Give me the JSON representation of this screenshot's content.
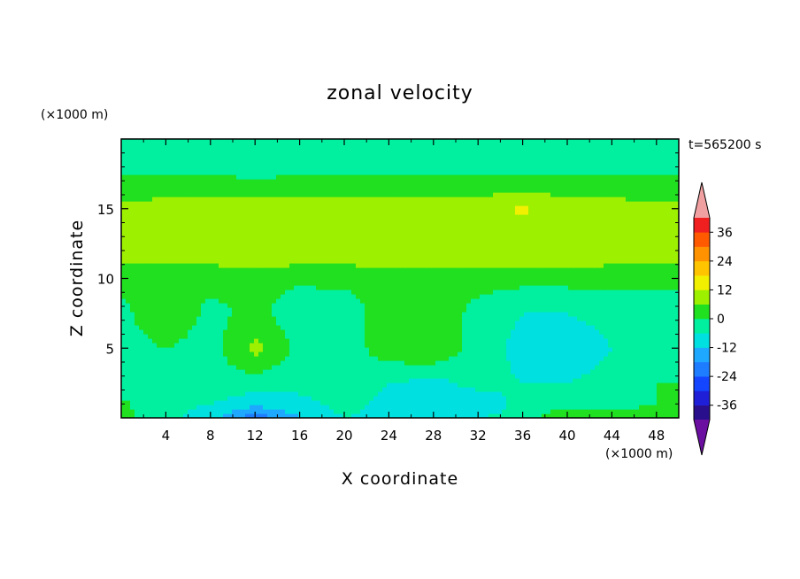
{
  "chart_data": {
    "type": "heatmap",
    "title": "zonal velocity",
    "xlabel": "X coordinate",
    "ylabel": "Z coordinate",
    "x_unit": "(×1000 m)",
    "y_unit": "(×1000 m)",
    "time_label": "t=565200 s",
    "xlim": [
      0,
      50
    ],
    "ylim": [
      0,
      20
    ],
    "x_ticks": [
      4,
      8,
      12,
      16,
      20,
      24,
      28,
      32,
      36,
      40,
      44,
      48
    ],
    "y_ticks": [
      5,
      10,
      15
    ],
    "colorbar": {
      "ticks": [
        36,
        24,
        12,
        0,
        -12,
        -24,
        -36
      ],
      "levels": [
        -42,
        -36,
        -30,
        -24,
        -18,
        -12,
        -6,
        0,
        6,
        12,
        18,
        24,
        30,
        36,
        42
      ],
      "colors": [
        "#6a0fa0",
        "#2a0f8c",
        "#1f1fd8",
        "#1446ff",
        "#1e7cff",
        "#1ea8ff",
        "#00e0e0",
        "#00f0a0",
        "#20e020",
        "#9cf000",
        "#f0f000",
        "#ffc400",
        "#ff9200",
        "#ff5a00",
        "#f02020",
        "#f0a0a0"
      ]
    },
    "field_grid": {
      "x": [
        0,
        4,
        8,
        12,
        16,
        20,
        24,
        28,
        32,
        36,
        40,
        44,
        48,
        50
      ],
      "z": [
        0,
        1,
        2.5,
        5,
        7.5,
        10,
        11,
        12.5,
        15,
        16.5,
        18,
        20
      ],
      "u": [
        [
          2,
          -4,
          -10,
          -22,
          -12,
          -6,
          -8,
          -8,
          -6,
          -4,
          6,
          4,
          2,
          2
        ],
        [
          1,
          -4,
          -6,
          -10,
          -8,
          -4,
          -8,
          -9,
          -10,
          -4,
          -2,
          -2,
          0,
          0
        ],
        [
          -2,
          -5,
          -2,
          -3,
          -4,
          -2,
          -6,
          -8,
          -4,
          -6,
          -6,
          -4,
          0,
          0
        ],
        [
          -3,
          0,
          -3,
          8,
          -2,
          -4,
          4,
          6,
          -3,
          -8,
          -10,
          -6,
          -2,
          -2
        ],
        [
          -2,
          6,
          -2,
          2,
          -4,
          -4,
          4,
          4,
          -2,
          -6,
          -6,
          -4,
          -2,
          -2
        ],
        [
          2,
          1,
          2,
          2,
          1,
          2,
          1,
          2,
          2,
          2,
          2,
          2,
          1,
          1
        ],
        [
          6,
          6,
          6,
          7,
          6,
          6,
          7,
          7,
          7,
          7,
          7,
          6,
          6,
          6
        ],
        [
          7,
          8,
          7,
          8,
          8,
          9,
          8,
          8,
          8,
          8,
          8,
          8,
          7,
          7
        ],
        [
          8,
          9,
          9,
          9,
          9,
          9,
          9,
          9,
          9,
          13,
          9,
          9,
          8,
          8
        ],
        [
          3,
          3,
          4,
          3,
          4,
          4,
          4,
          4,
          4,
          4,
          4,
          3,
          3,
          3
        ],
        [
          -2,
          -2,
          -3,
          -3,
          -3,
          -2,
          -3,
          -3,
          -3,
          -3,
          -3,
          -2,
          -2,
          -2
        ],
        [
          -1,
          -2,
          -1,
          -2,
          -1,
          -2,
          -1,
          -2,
          -1,
          -2,
          -1,
          -2,
          -1,
          -1
        ]
      ]
    }
  }
}
